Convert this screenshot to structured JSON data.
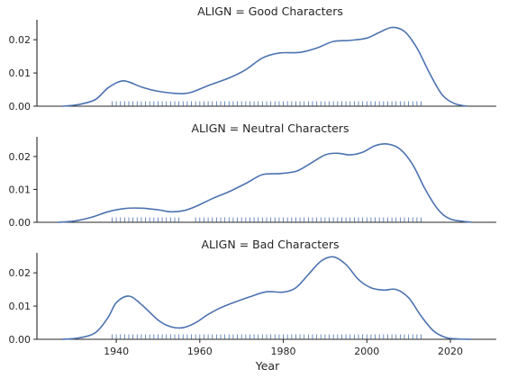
{
  "chart_data": {
    "type": "line",
    "xlabel": "Year",
    "xlim": [
      1921,
      2031
    ],
    "ylim": [
      0,
      0.026
    ],
    "xticks": [
      1940,
      1960,
      1980,
      2000,
      2020
    ],
    "yticks": [
      0.0,
      0.01,
      0.02
    ],
    "ytick_labels": [
      "0.00",
      "0.01",
      "0.02"
    ],
    "grid": false,
    "panels": [
      {
        "title": "ALIGN = Good Characters",
        "series": [
          {
            "x": [
              1927,
              1931,
              1935,
              1938,
              1941,
              1943,
              1946,
              1950,
              1955,
              1958,
              1962,
              1967,
              1971,
              1975,
              1979,
              1984,
              1988,
              1992,
              1996,
              2000,
              2003,
              2006,
              2009,
              2012,
              2015,
              2018,
              2021,
              2024
            ],
            "y": [
              0.0,
              0.0005,
              0.002,
              0.0055,
              0.0075,
              0.0073,
              0.0058,
              0.0045,
              0.0038,
              0.0042,
              0.0062,
              0.0085,
              0.011,
              0.0145,
              0.016,
              0.0162,
              0.0175,
              0.0195,
              0.0198,
              0.0205,
              0.0222,
              0.0237,
              0.0225,
              0.0175,
              0.01,
              0.0035,
              0.0008,
              0.0
            ]
          }
        ],
        "rug": [
          1939,
          1940,
          1941,
          1942,
          1943,
          1944,
          1945,
          1946,
          1947,
          1948,
          1949,
          1950,
          1951,
          1952,
          1953,
          1954,
          1955,
          1956,
          1957,
          1958,
          1959,
          1960,
          1961,
          1962,
          1963,
          1964,
          1965,
          1966,
          1967,
          1968,
          1969,
          1970,
          1971,
          1972,
          1973,
          1974,
          1975,
          1976,
          1977,
          1978,
          1979,
          1980,
          1981,
          1982,
          1983,
          1984,
          1985,
          1986,
          1987,
          1988,
          1989,
          1990,
          1991,
          1992,
          1993,
          1994,
          1995,
          1996,
          1997,
          1998,
          1999,
          2000,
          2001,
          2002,
          2003,
          2004,
          2005,
          2006,
          2007,
          2008,
          2009,
          2010,
          2011,
          2012,
          2013
        ]
      },
      {
        "title": "ALIGN = Neutral Characters",
        "series": [
          {
            "x": [
              1926,
              1930,
              1934,
              1938,
              1942,
              1946,
              1950,
              1953,
              1956,
              1959,
              1963,
              1967,
              1971,
              1975,
              1979,
              1983,
              1986,
              1990,
              1993,
              1996,
              1999,
              2002,
              2005,
              2008,
              2011,
              2014,
              2017,
              2020,
              2025
            ],
            "y": [
              0.0,
              0.0004,
              0.0015,
              0.0032,
              0.0042,
              0.0043,
              0.0038,
              0.0032,
              0.0035,
              0.0048,
              0.0072,
              0.0093,
              0.0118,
              0.0145,
              0.0148,
              0.0155,
              0.0175,
              0.0205,
              0.021,
              0.0205,
              0.0213,
              0.0233,
              0.0238,
              0.0222,
              0.0175,
              0.01,
              0.004,
              0.001,
              0.0
            ]
          }
        ],
        "rug": [
          1939,
          1940,
          1941,
          1942,
          1943,
          1944,
          1945,
          1946,
          1947,
          1948,
          1949,
          1950,
          1951,
          1952,
          1953,
          1954,
          1955,
          1959,
          1960,
          1961,
          1962,
          1963,
          1964,
          1965,
          1966,
          1967,
          1968,
          1969,
          1970,
          1971,
          1972,
          1973,
          1974,
          1975,
          1976,
          1977,
          1978,
          1979,
          1980,
          1981,
          1982,
          1983,
          1984,
          1985,
          1986,
          1987,
          1988,
          1989,
          1990,
          1991,
          1992,
          1993,
          1994,
          1995,
          1996,
          1997,
          1998,
          1999,
          2000,
          2001,
          2002,
          2003,
          2004,
          2005,
          2006,
          2007,
          2008,
          2009,
          2010,
          2011,
          2012,
          2013
        ]
      },
      {
        "title": "ALIGN = Bad Characters",
        "series": [
          {
            "x": [
              1927,
              1931,
              1935,
              1938,
              1940,
              1943,
              1946,
              1950,
              1953,
              1956,
              1959,
              1962,
              1965,
              1968,
              1972,
              1976,
              1980,
              1983,
              1986,
              1989,
              1992,
              1995,
              1998,
              2001,
              2004,
              2007,
              2010,
              2013,
              2016,
              2019,
              2022,
              2025
            ],
            "y": [
              0.0,
              0.0004,
              0.002,
              0.0065,
              0.011,
              0.013,
              0.0105,
              0.0058,
              0.0038,
              0.0035,
              0.005,
              0.0075,
              0.0095,
              0.011,
              0.0128,
              0.0143,
              0.0142,
              0.0155,
              0.0195,
              0.0235,
              0.0248,
              0.0225,
              0.018,
              0.0155,
              0.0148,
              0.015,
              0.0125,
              0.007,
              0.0025,
              0.0005,
              0.0001,
              0.0
            ]
          }
        ],
        "rug": [
          1939,
          1940,
          1941,
          1942,
          1943,
          1944,
          1945,
          1946,
          1947,
          1948,
          1949,
          1950,
          1951,
          1952,
          1953,
          1954,
          1955,
          1956,
          1957,
          1958,
          1959,
          1960,
          1961,
          1962,
          1963,
          1964,
          1965,
          1966,
          1967,
          1968,
          1969,
          1970,
          1971,
          1972,
          1973,
          1974,
          1975,
          1976,
          1977,
          1978,
          1979,
          1980,
          1981,
          1982,
          1983,
          1984,
          1985,
          1986,
          1987,
          1988,
          1989,
          1990,
          1991,
          1992,
          1993,
          1994,
          1995,
          1996,
          1997,
          1998,
          1999,
          2000,
          2001,
          2002,
          2003,
          2004,
          2005,
          2006,
          2007,
          2008,
          2009,
          2010,
          2011,
          2012,
          2013
        ]
      }
    ]
  }
}
